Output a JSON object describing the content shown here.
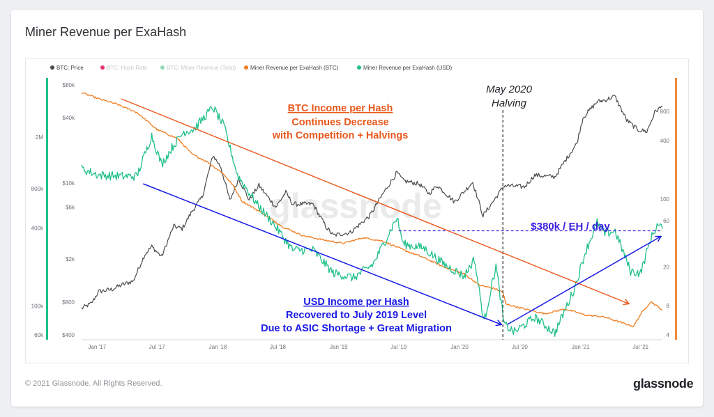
{
  "page": {
    "title": "Miner Revenue per ExaHash",
    "copyright": "© 2021 Glassnode. All Rights Reserved.",
    "brand": "glassnode",
    "watermark": "glassnode"
  },
  "colors": {
    "price": "#4a4a4a",
    "hash_rate": "#e8336e",
    "revenue_total": "#94d9b9",
    "rev_btc": "#f07c1e",
    "rev_usd": "#1fbf8a",
    "orange_axis": "#f08a3c",
    "green_axis": "#1fbf8a",
    "annot_orange": "#e8581c",
    "annot_blue": "#1a1ae6",
    "annot_purple": "#3a22e0"
  },
  "legend": [
    {
      "label": "BTC: Price",
      "color": "#4a4a4a",
      "dim": false
    },
    {
      "label": "BTC: Hash Rate",
      "color": "#e8336e",
      "dim": true
    },
    {
      "label": "BTC: Miner Revenue (Total)",
      "color": "#94d9b9",
      "dim": true
    },
    {
      "label": "Miner Revenue per ExaHash (BTC)",
      "color": "#f07c1e",
      "dim": false
    },
    {
      "label": "Miner Revenue per ExaHash (USD)",
      "color": "#1fbf8a",
      "dim": false
    }
  ],
  "annotations": {
    "btc_income_title": "BTC Income per Hash",
    "btc_income_line2": "Continues Decrease",
    "btc_income_line3": "with Competition + Halvings",
    "usd_income_title": "USD Income per Hash",
    "usd_income_line2": "Recovered to July 2019 Level",
    "usd_income_line3": "Due to ASIC Shortage + Great Migration",
    "halving_line1": "May 2020",
    "halving_line2": "Halving",
    "level_label": "$380k / EH / day"
  },
  "chart_data": {
    "type": "line",
    "x_range": [
      "2016-11-15",
      "2021-09-05"
    ],
    "x_ticks": [
      "Jan '17",
      "Jul '17",
      "Jan '18",
      "Jul '18",
      "Jan '19",
      "Jul '19",
      "Jan '20",
      "Jul '20",
      "Jan '21",
      "Jul '21"
    ],
    "y_axes": {
      "price": {
        "scale": "log",
        "range": [
          400,
          80000
        ],
        "ticks": [
          "$80k",
          "$40k",
          "$10k",
          "$6k",
          "$2k",
          "$800",
          "$400"
        ]
      },
      "outer_left": {
        "scale": "log",
        "ticks": [
          "2M",
          "800k",
          "400k",
          "100k",
          "60k"
        ]
      },
      "btc_per_eh": {
        "scale": "log",
        "range": [
          4,
          1300
        ],
        "ticks": [
          "800",
          "400",
          "100",
          "60",
          "20",
          "8",
          "4"
        ]
      }
    },
    "series": [
      {
        "name": "BTC: Price",
        "axis": "price",
        "points": [
          [
            "2016-11-15",
            700
          ],
          [
            "2016-12-15",
            780
          ],
          [
            "2017-01-05",
            1000
          ],
          [
            "2017-02-15",
            1050
          ],
          [
            "2017-03-15",
            1150
          ],
          [
            "2017-04-20",
            1250
          ],
          [
            "2017-05-25",
            2200
          ],
          [
            "2017-06-15",
            2600
          ],
          [
            "2017-07-15",
            2100
          ],
          [
            "2017-08-20",
            4000
          ],
          [
            "2017-09-15",
            3800
          ],
          [
            "2017-10-15",
            5500
          ],
          [
            "2017-11-15",
            7500
          ],
          [
            "2017-12-17",
            18000
          ],
          [
            "2018-01-10",
            14000
          ],
          [
            "2018-02-06",
            6900
          ],
          [
            "2018-03-05",
            11000
          ],
          [
            "2018-04-05",
            7000
          ],
          [
            "2018-05-05",
            9500
          ],
          [
            "2018-06-25",
            6000
          ],
          [
            "2018-07-25",
            8200
          ],
          [
            "2018-08-15",
            6400
          ],
          [
            "2018-10-15",
            6400
          ],
          [
            "2018-11-25",
            3900
          ],
          [
            "2018-12-15",
            3300
          ],
          [
            "2019-02-05",
            3500
          ],
          [
            "2019-04-05",
            5000
          ],
          [
            "2019-05-15",
            8000
          ],
          [
            "2019-06-26",
            12500
          ],
          [
            "2019-07-15",
            10500
          ],
          [
            "2019-09-01",
            9800
          ],
          [
            "2019-10-01",
            8000
          ],
          [
            "2019-10-26",
            9500
          ],
          [
            "2019-12-17",
            6700
          ],
          [
            "2020-02-10",
            10200
          ],
          [
            "2020-03-12",
            5000
          ],
          [
            "2020-04-15",
            7000
          ],
          [
            "2020-05-15",
            9500
          ],
          [
            "2020-07-15",
            9200
          ],
          [
            "2020-08-15",
            11800
          ],
          [
            "2020-10-15",
            11400
          ],
          [
            "2020-11-15",
            16000
          ],
          [
            "2020-12-20",
            23000
          ],
          [
            "2021-01-08",
            40000
          ],
          [
            "2021-02-20",
            56000
          ],
          [
            "2021-03-15",
            58000
          ],
          [
            "2021-04-14",
            63000
          ],
          [
            "2021-05-20",
            38000
          ],
          [
            "2021-06-22",
            31000
          ],
          [
            "2021-07-20",
            29800
          ],
          [
            "2021-08-15",
            46000
          ],
          [
            "2021-09-05",
            50500
          ]
        ]
      },
      {
        "name": "Miner Revenue per ExaHash (BTC)",
        "axis": "btc_per_eh",
        "points": [
          [
            "2016-11-15",
            1250
          ],
          [
            "2017-01-05",
            1080
          ],
          [
            "2017-03-01",
            950
          ],
          [
            "2017-05-01",
            780
          ],
          [
            "2017-07-01",
            520
          ],
          [
            "2017-09-01",
            420
          ],
          [
            "2017-10-15",
            290
          ],
          [
            "2017-12-01",
            240
          ],
          [
            "2018-01-15",
            185
          ],
          [
            "2018-02-15",
            140
          ],
          [
            "2018-03-15",
            95
          ],
          [
            "2018-05-15",
            72
          ],
          [
            "2018-07-15",
            52
          ],
          [
            "2018-09-15",
            42
          ],
          [
            "2018-11-15",
            38
          ],
          [
            "2019-01-15",
            35
          ],
          [
            "2019-03-15",
            40
          ],
          [
            "2019-05-15",
            37
          ],
          [
            "2019-07-15",
            30
          ],
          [
            "2019-09-15",
            25
          ],
          [
            "2019-11-15",
            20
          ],
          [
            "2020-01-15",
            17
          ],
          [
            "2020-03-01",
            13
          ],
          [
            "2020-04-15",
            12
          ],
          [
            "2020-05-11",
            11
          ],
          [
            "2020-05-20",
            8.3
          ],
          [
            "2020-07-15",
            7.4
          ],
          [
            "2020-09-15",
            6.6
          ],
          [
            "2020-11-15",
            7.4
          ],
          [
            "2021-01-15",
            6.4
          ],
          [
            "2021-03-15",
            6.1
          ],
          [
            "2021-05-15",
            5.2
          ],
          [
            "2021-06-10",
            4.9
          ],
          [
            "2021-07-01",
            6.5
          ],
          [
            "2021-08-01",
            8.8
          ],
          [
            "2021-09-05",
            7.2
          ]
        ]
      },
      {
        "name": "Miner Revenue per ExaHash (USD)",
        "axis": "outer_left",
        "points": [
          [
            "2016-11-15",
            1140000
          ],
          [
            "2017-01-05",
            1020000
          ],
          [
            "2017-03-15",
            1000000
          ],
          [
            "2017-05-01",
            1000000
          ],
          [
            "2017-06-15",
            2050000
          ],
          [
            "2017-07-15",
            1230000
          ],
          [
            "2017-08-15",
            1660000
          ],
          [
            "2017-09-20",
            2200000
          ],
          [
            "2017-10-20",
            2300000
          ],
          [
            "2017-12-17",
            3400000
          ],
          [
            "2018-01-20",
            2400000
          ],
          [
            "2018-03-01",
            1020000
          ],
          [
            "2018-05-01",
            600000
          ],
          [
            "2018-06-15",
            440000
          ],
          [
            "2018-08-15",
            270000
          ],
          [
            "2018-10-15",
            270000
          ],
          [
            "2018-12-15",
            180000
          ],
          [
            "2019-02-15",
            165000
          ],
          [
            "2019-04-15",
            210000
          ],
          [
            "2019-06-26",
            480000
          ],
          [
            "2019-07-15",
            300000
          ],
          [
            "2019-09-15",
            280000
          ],
          [
            "2019-11-15",
            210000
          ],
          [
            "2020-01-15",
            170000
          ],
          [
            "2020-02-15",
            230000
          ],
          [
            "2020-03-15",
            75000
          ],
          [
            "2020-04-20",
            205000
          ],
          [
            "2020-05-15",
            72000
          ],
          [
            "2020-06-15",
            63000
          ],
          [
            "2020-08-15",
            82000
          ],
          [
            "2020-10-15",
            62000
          ],
          [
            "2020-12-15",
            140000
          ],
          [
            "2021-01-15",
            260000
          ],
          [
            "2021-02-20",
            440000
          ],
          [
            "2021-03-15",
            360000
          ],
          [
            "2021-04-15",
            380000
          ],
          [
            "2021-06-01",
            185000
          ],
          [
            "2021-07-01",
            180000
          ],
          [
            "2021-08-01",
            330000
          ],
          [
            "2021-08-20",
            420000
          ],
          [
            "2021-09-05",
            395000
          ]
        ]
      }
    ],
    "reference_lines": [
      {
        "label": "May 2020 Halving",
        "x": "2020-05-11",
        "style": "dashed"
      },
      {
        "label": "$380k / EH / day",
        "value": 380000,
        "from": "2019-07-01",
        "style": "dashed"
      }
    ]
  }
}
